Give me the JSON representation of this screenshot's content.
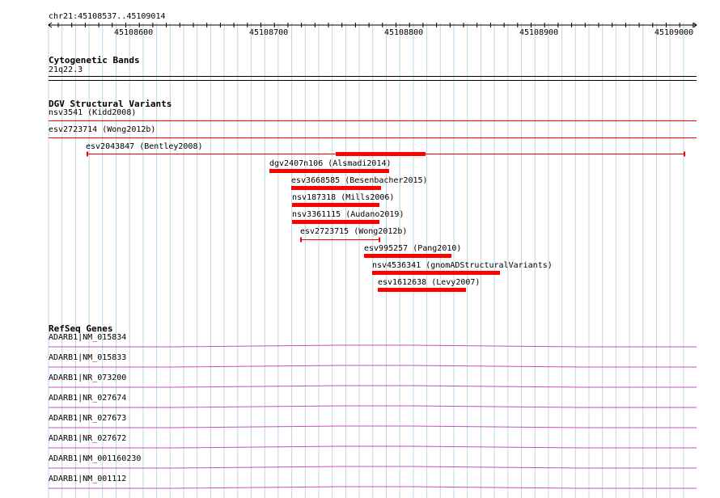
{
  "colors": {
    "grid": "#b7d8ec",
    "variant": "#ff0000",
    "gene": "#c050c0",
    "band_rule": "#000000"
  },
  "ruler": {
    "location": "chr21:45108537..45109014",
    "ticks": [
      "45108600",
      "45108700",
      "45108800",
      "45108900",
      "45109000"
    ]
  },
  "cytoband": {
    "title": "Cytogenetic Bands",
    "band_label": "21q22.3"
  },
  "dgv": {
    "title": "DGV Structural Variants",
    "items": [
      {
        "label": "nsv3541 (Kidd2008)"
      },
      {
        "label": "esv2723714 (Wong2012b)"
      },
      {
        "label": "esv2043847 (Bentley2008)"
      },
      {
        "label": "dgv2407n106 (Alsmadi2014)"
      },
      {
        "label": "esv3668585 (Besenbacher2015)"
      },
      {
        "label": "nsv187318 (Mills2006)"
      },
      {
        "label": "nsv3361115 (Audano2019)"
      },
      {
        "label": "esv2723715 (Wong2012b)"
      },
      {
        "label": "esv995257 (Pang2010)"
      },
      {
        "label": "nsv4536341 (gnomADStructuralVariants)"
      },
      {
        "label": "esv1612638 (Levy2007)"
      }
    ]
  },
  "refseq": {
    "title": "RefSeq Genes",
    "genes": [
      {
        "label": "ADARB1|NM_015834"
      },
      {
        "label": "ADARB1|NM_015833"
      },
      {
        "label": "ADARB1|NR_073200"
      },
      {
        "label": "ADARB1|NR_027674"
      },
      {
        "label": "ADARB1|NR_027673"
      },
      {
        "label": "ADARB1|NR_027672"
      },
      {
        "label": "ADARB1|NM_001160230"
      },
      {
        "label": "ADARB1|NM_001112"
      }
    ]
  }
}
